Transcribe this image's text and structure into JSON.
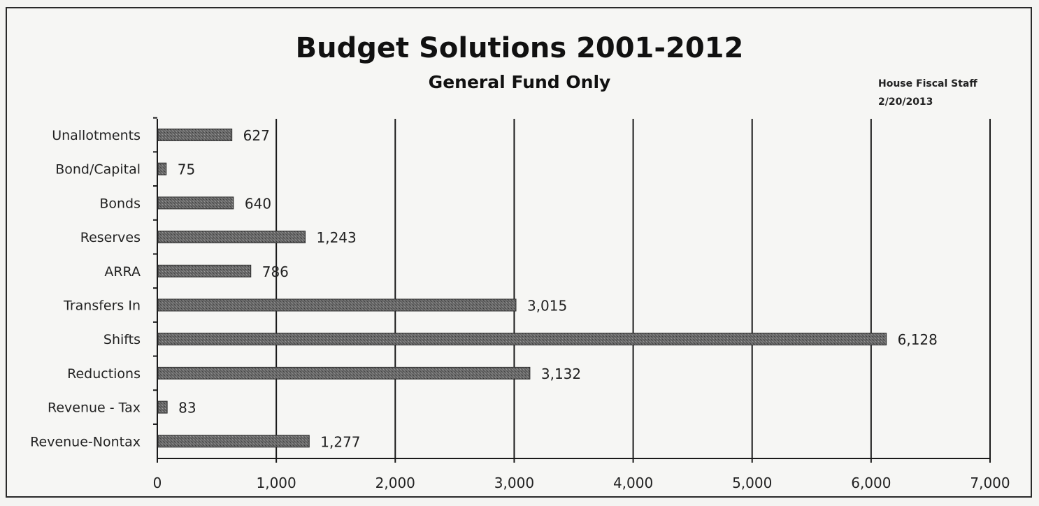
{
  "chart_data": {
    "type": "bar",
    "orientation": "horizontal",
    "title": "Budget Solutions 2001-2012",
    "subtitle": "General Fund Only",
    "annotation": [
      "House Fiscal Staff",
      "2/20/2013"
    ],
    "categories": [
      "Unallotments",
      "Bond/Capital",
      "Bonds",
      "Reserves",
      "ARRA",
      "Transfers In",
      "Shifts",
      "Reductions",
      "Revenue - Tax",
      "Revenue-Nontax"
    ],
    "values": [
      627,
      75,
      640,
      1243,
      786,
      3015,
      6128,
      3132,
      83,
      1277
    ],
    "value_labels": [
      "627",
      "75",
      "640",
      "1,243",
      "786",
      "3,015",
      "6,128",
      "3,132",
      "83",
      "1,277"
    ],
    "xlim": [
      0,
      7000
    ],
    "x_ticks": [
      0,
      1000,
      2000,
      3000,
      4000,
      5000,
      6000,
      7000
    ],
    "x_tick_labels": [
      "0",
      "1,000",
      "2,000",
      "3,000",
      "4,000",
      "5,000",
      "6,000",
      "7,000"
    ],
    "grid": "vertical",
    "legend": "none",
    "bar_color": "#5a5a5a"
  }
}
